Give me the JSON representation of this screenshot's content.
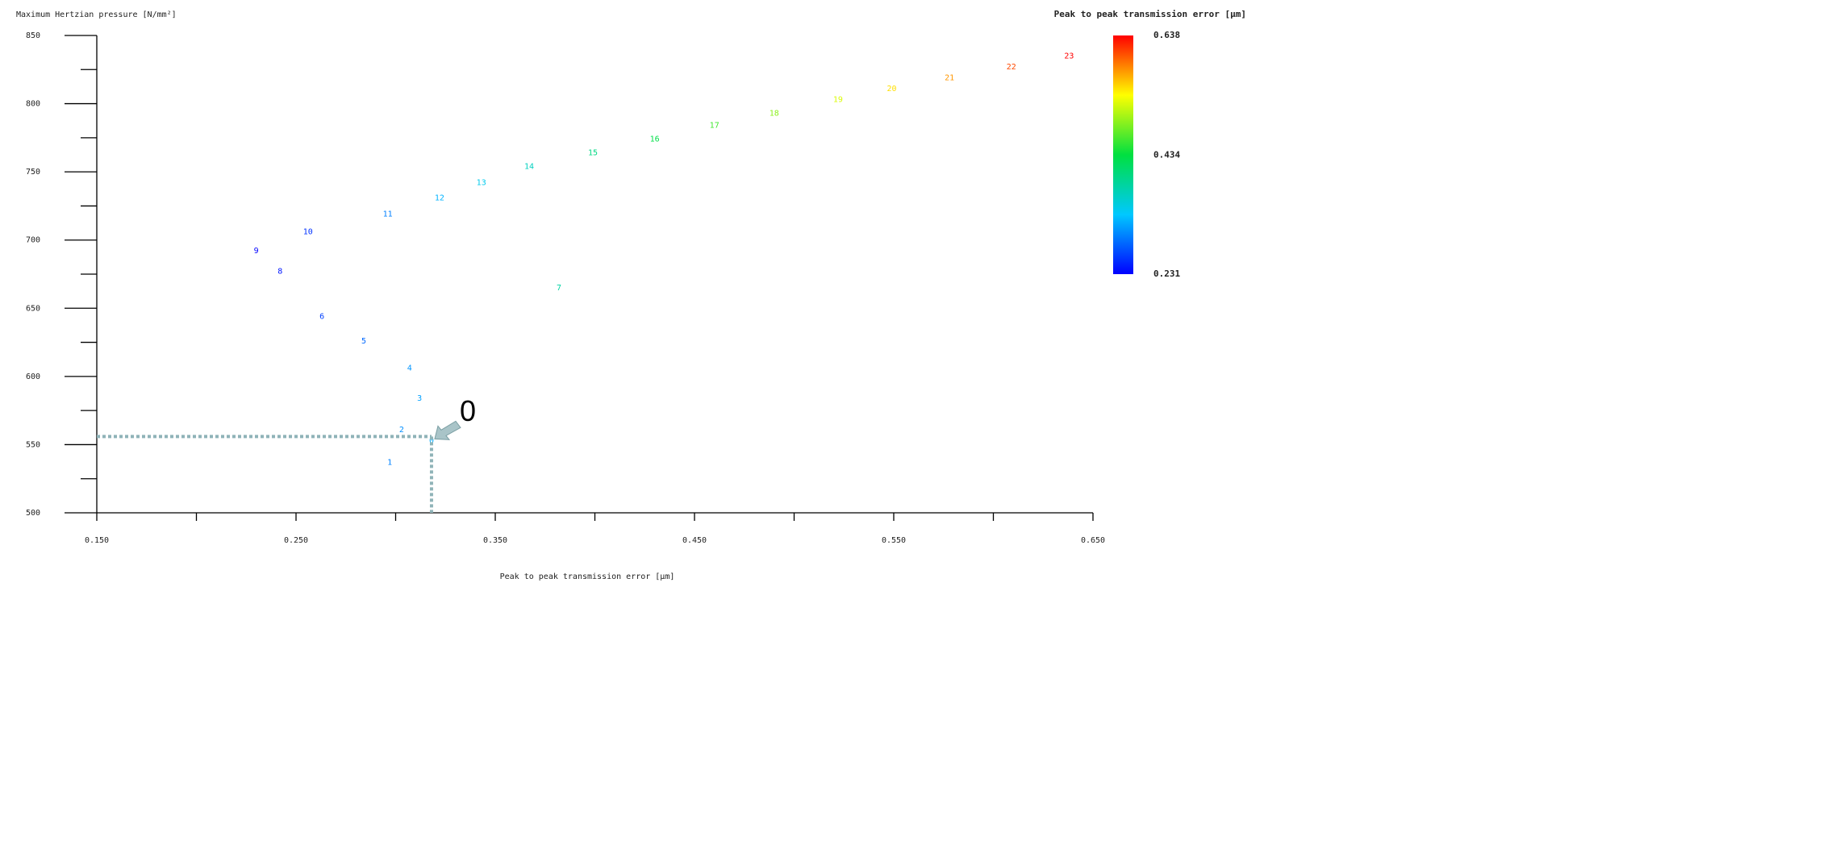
{
  "chart_data": {
    "type": "scatter",
    "y_axis_title": "Maximum Hertzian pressure [N/mm²]",
    "x_axis_title": "Peak to peak transmission error [µm]",
    "labels": [
      "0",
      "1",
      "2",
      "3",
      "4",
      "5",
      "6",
      "7",
      "8",
      "9",
      "10",
      "11",
      "12",
      "13",
      "14",
      "15",
      "16",
      "17",
      "18",
      "19",
      "20",
      "21",
      "22",
      "23"
    ],
    "x": [
      0.318,
      0.297,
      0.303,
      0.312,
      0.307,
      0.284,
      0.263,
      0.382,
      0.242,
      0.23,
      0.256,
      0.296,
      0.322,
      0.343,
      0.367,
      0.399,
      0.43,
      0.46,
      0.49,
      0.522,
      0.549,
      0.578,
      0.609,
      0.638
    ],
    "values": [
      553,
      537,
      561,
      584,
      606,
      626,
      644,
      665,
      677,
      692,
      706,
      719,
      731,
      742,
      754,
      764,
      774,
      784,
      793,
      803,
      811,
      819,
      827,
      835
    ],
    "xlim": [
      0.15,
      0.65
    ],
    "xticks": [
      {
        "value": 0.15,
        "label": "0.150"
      },
      {
        "value": 0.25,
        "label": "0.250"
      },
      {
        "value": 0.35,
        "label": "0.350"
      },
      {
        "value": 0.45,
        "label": "0.450"
      },
      {
        "value": 0.55,
        "label": "0.550"
      },
      {
        "value": 0.65,
        "label": "0.650"
      }
    ],
    "xminorticks": [
      0.2,
      0.3,
      0.4,
      0.5,
      0.6
    ],
    "ylim": [
      500,
      850
    ],
    "yticks": [
      500,
      550,
      600,
      650,
      700,
      750,
      800,
      850
    ],
    "yminorticks": [
      525,
      575,
      625,
      675,
      725,
      775,
      825
    ],
    "colorbar": {
      "title": "Peak to peak transmission error [µm]",
      "min": 0.231,
      "max": 0.638,
      "ticks": [
        0.638,
        0.434,
        0.231
      ],
      "colors": [
        "#0000ff",
        "#00c8ff",
        "#00e040",
        "#ffff00",
        "#ff0000"
      ]
    },
    "annotation": "0",
    "annotation_color": "#8fb3b8"
  }
}
